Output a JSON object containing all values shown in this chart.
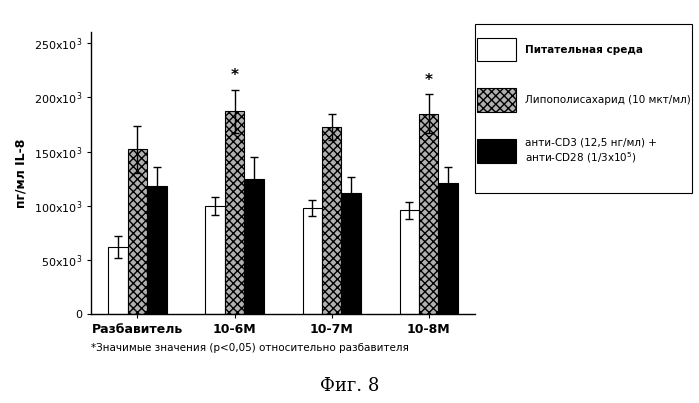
{
  "groups": [
    "Разбавитель",
    "10-6М",
    "10-7М",
    "10-8М"
  ],
  "series": {
    "nutrient": {
      "label": "Питательная среда",
      "color": "#ffffff",
      "edgecolor": "#000000",
      "values": [
        62000,
        100000,
        98000,
        96000
      ],
      "errors": [
        10000,
        8000,
        7000,
        8000
      ],
      "hatch": null,
      "star": [
        false,
        false,
        false,
        false
      ]
    },
    "lps": {
      "label": "Липополисахарид (10 мкт/мл)",
      "color": "#b0b0b0",
      "hatch": "xxxx",
      "edgecolor": "#000000",
      "values": [
        152000,
        187000,
        173000,
        185000
      ],
      "errors": [
        22000,
        20000,
        12000,
        18000
      ],
      "star": [
        false,
        true,
        false,
        true
      ]
    },
    "anticd": {
      "label": "анти-CD3 (12,5 нг/мл) + анти-CD28 (1/3x10⁵)",
      "color": "#000000",
      "edgecolor": "#000000",
      "hatch": null,
      "values": [
        118000,
        125000,
        112000,
        121000
      ],
      "errors": [
        18000,
        20000,
        15000,
        15000
      ],
      "star": [
        false,
        false,
        false,
        false
      ]
    }
  },
  "ylabel": "пг/мл IL-8",
  "ylim": [
    0,
    260000
  ],
  "yticks": [
    0,
    50000,
    100000,
    150000,
    200000,
    250000
  ],
  "footnote": "*Значимые значения (р<0,05) относительно разбавителя",
  "figure_label": "Фиг. 8",
  "bar_width": 0.2,
  "background_color": "#ffffff"
}
